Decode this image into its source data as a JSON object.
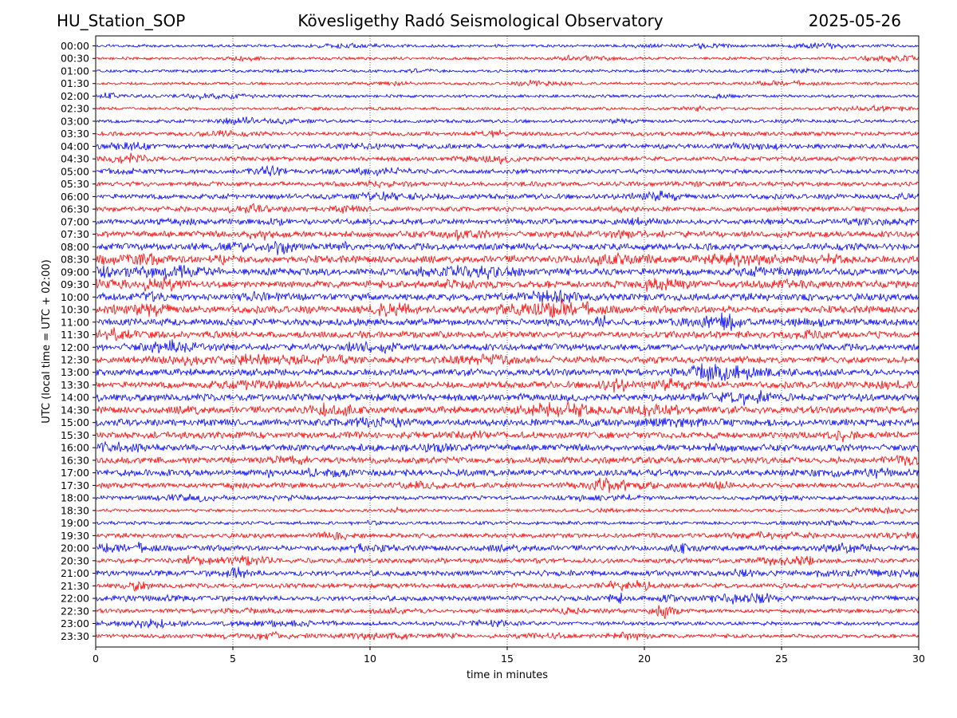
{
  "header": {
    "station": "HU_Station_SOP",
    "observatory": "Köveslig­ethy Radó Seismological Observatory",
    "date": "2025-05-26"
  },
  "chart_data": {
    "type": "line",
    "title": "Köveslig­ethy Radó Seismological Observatory",
    "xlabel": "time in minutes",
    "ylabel": "UTC (local time = UTC + 02:00)",
    "xlim": [
      0,
      30
    ],
    "xticks": [
      "0",
      "5",
      "10",
      "15",
      "20",
      "25",
      "30"
    ],
    "grid": "vertical-dotted",
    "colors": {
      "even_row": "#0000ff",
      "odd_row": "#ff0000"
    },
    "rows": [
      {
        "label": "00:00",
        "activity": 0.25
      },
      {
        "label": "00:30",
        "activity": 0.25
      },
      {
        "label": "01:00",
        "activity": 0.28
      },
      {
        "label": "01:30",
        "activity": 0.25
      },
      {
        "label": "02:00",
        "activity": 0.28
      },
      {
        "label": "02:30",
        "activity": 0.28
      },
      {
        "label": "03:00",
        "activity": 0.35
      },
      {
        "label": "03:30",
        "activity": 0.45
      },
      {
        "label": "04:00",
        "activity": 0.6
      },
      {
        "label": "04:30",
        "activity": 0.55
      },
      {
        "label": "05:00",
        "activity": 0.55
      },
      {
        "label": "05:30",
        "activity": 0.55
      },
      {
        "label": "06:00",
        "activity": 0.65
      },
      {
        "label": "06:30",
        "activity": 0.6
      },
      {
        "label": "07:00",
        "activity": 0.7
      },
      {
        "label": "07:30",
        "activity": 0.8
      },
      {
        "label": "08:00",
        "activity": 0.9
      },
      {
        "label": "08:30",
        "activity": 1.0
      },
      {
        "label": "09:00",
        "activity": 1.0
      },
      {
        "label": "09:30",
        "activity": 1.0
      },
      {
        "label": "10:00",
        "activity": 1.0
      },
      {
        "label": "10:30",
        "activity": 1.0
      },
      {
        "label": "11:00",
        "activity": 0.95
      },
      {
        "label": "11:30",
        "activity": 0.9
      },
      {
        "label": "12:00",
        "activity": 0.9
      },
      {
        "label": "12:30",
        "activity": 0.9
      },
      {
        "label": "13:00",
        "activity": 0.9
      },
      {
        "label": "13:30",
        "activity": 0.9
      },
      {
        "label": "14:00",
        "activity": 1.0
      },
      {
        "label": "14:30",
        "activity": 0.95
      },
      {
        "label": "15:00",
        "activity": 0.95
      },
      {
        "label": "15:30",
        "activity": 0.9
      },
      {
        "label": "16:00",
        "activity": 0.9
      },
      {
        "label": "16:30",
        "activity": 0.85
      },
      {
        "label": "17:00",
        "activity": 0.85
      },
      {
        "label": "17:30",
        "activity": 0.7
      },
      {
        "label": "18:00",
        "activity": 0.45
      },
      {
        "label": "18:30",
        "activity": 0.3
      },
      {
        "label": "19:00",
        "activity": 0.35
      },
      {
        "label": "19:30",
        "activity": 0.55
      },
      {
        "label": "20:00",
        "activity": 0.7
      },
      {
        "label": "20:30",
        "activity": 0.6
      },
      {
        "label": "21:00",
        "activity": 0.7
      },
      {
        "label": "21:30",
        "activity": 0.6
      },
      {
        "label": "22:00",
        "activity": 0.65
      },
      {
        "label": "22:30",
        "activity": 0.5
      },
      {
        "label": "23:00",
        "activity": 0.4
      },
      {
        "label": "23:30",
        "activity": 0.45
      }
    ]
  }
}
